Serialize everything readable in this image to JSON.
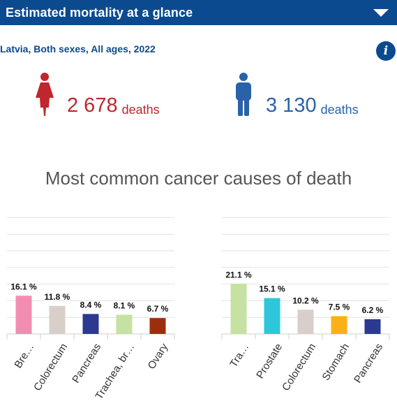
{
  "header": {
    "title": "Estimated mortality at a glance"
  },
  "subtitle": "Latvia, Both sexes, All ages, 2022",
  "female": {
    "count": "2 678",
    "unit": "deaths",
    "color": "#c0262d"
  },
  "male": {
    "count": "3 130",
    "unit": "deaths",
    "color": "#2a62a9"
  },
  "icons": {
    "collapse": "chevron-down-icon",
    "info": "info-icon",
    "female": "female-person-icon",
    "male": "male-person-icon"
  },
  "info_glyph": "i",
  "chart_title": "Most common cancer causes of death",
  "chart_data": [
    {
      "type": "bar",
      "categories": [
        "Bre…",
        "Colorectum",
        "Pancreas",
        "Trachea, br…",
        "Ovary"
      ],
      "values": [
        16.1,
        11.8,
        8.4,
        8.1,
        6.7
      ],
      "value_labels": [
        "16.1 %",
        "11.8 %",
        "8.4 %",
        "8.1 %",
        "6.7 %"
      ],
      "colors": [
        "#f28db2",
        "#d8cfcb",
        "#2b3990",
        "#c6e2a3",
        "#9b2f0d"
      ],
      "ylim": [
        0,
        40
      ],
      "grid": true
    },
    {
      "type": "bar",
      "categories": [
        "Tra…",
        "Prostate",
        "Colorectum",
        "Stomach",
        "Pancreas"
      ],
      "values": [
        21.1,
        15.1,
        10.2,
        7.5,
        6.2
      ],
      "value_labels": [
        "21.1 %",
        "15.1 %",
        "10.2 %",
        "7.5 %",
        "6.2 %"
      ],
      "colors": [
        "#c6e2a3",
        "#2ec7d9",
        "#d8cfcb",
        "#fbb116",
        "#2b3990"
      ],
      "ylim": [
        0,
        40
      ],
      "grid": true
    }
  ]
}
